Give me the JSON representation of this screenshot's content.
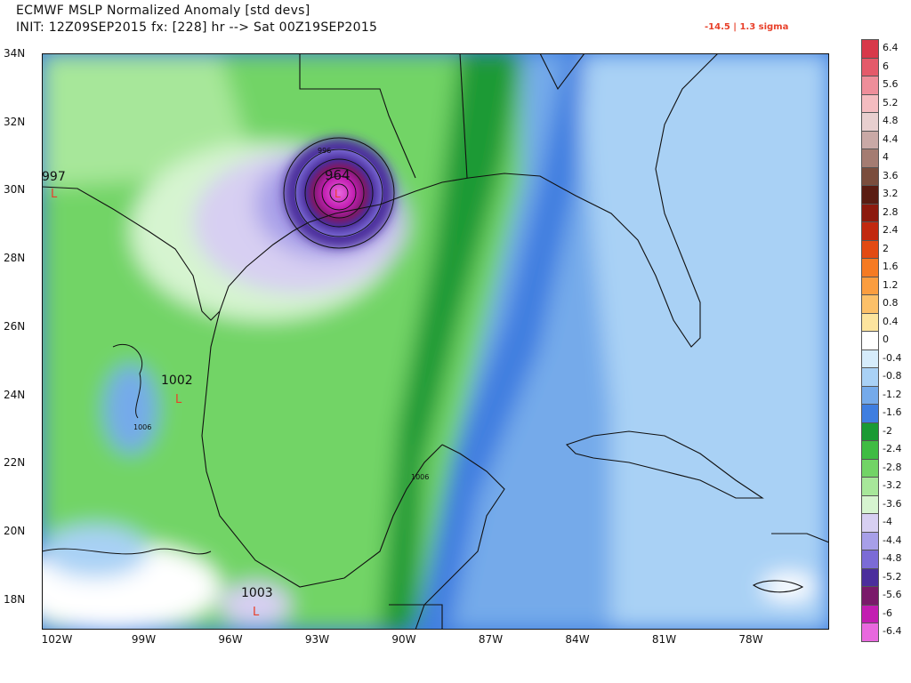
{
  "header": {
    "title_line1": "ECMWF MSLP Normalized Anomaly [std devs]",
    "title_line2": "INIT: 12Z09SEP2015 fx: [228] hr --> Sat 00Z19SEP2015",
    "stat": "-14.5 | 1.3 sigma"
  },
  "axes": {
    "lat_labels": [
      "34N",
      "32N",
      "30N",
      "28N",
      "26N",
      "24N",
      "22N",
      "20N",
      "18N"
    ],
    "lon_labels": [
      "102W",
      "99W",
      "96W",
      "93W",
      "90W",
      "87W",
      "84W",
      "81W",
      "78W"
    ]
  },
  "features": {
    "low_main_value": "964",
    "low_main_contour": "996",
    "low_west_value": "997",
    "low_mex_value": "1002",
    "low_mex_contour": "1006",
    "low_yuc_contour": "1006",
    "low_south_value": "1003",
    "low_marker": "L"
  },
  "colorbar": {
    "labels": [
      "6.4",
      "6",
      "5.6",
      "5.2",
      "4.8",
      "4.4",
      "4",
      "3.6",
      "3.2",
      "2.8",
      "2.4",
      "2",
      "1.6",
      "1.2",
      "0.8",
      "0.4",
      "0",
      "-0.4",
      "-0.8",
      "-1.2",
      "-1.6",
      "-2",
      "-2.4",
      "-2.8",
      "-3.2",
      "-3.6",
      "-4",
      "-4.4",
      "-4.8",
      "-5.2",
      "-5.6",
      "-6",
      "-6.4"
    ],
    "colors": [
      "#d8394a",
      "#e45a6a",
      "#ee8e9a",
      "#f4bcc0",
      "#e8cfcf",
      "#c9a9a6",
      "#a47c72",
      "#7a4d3d",
      "#5a1c12",
      "#8c1a0e",
      "#c1280f",
      "#e24a13",
      "#f57a22",
      "#fb9d3f",
      "#fcc069",
      "#fde49e",
      "#ffffff",
      "#d6ecfb",
      "#a9d1f5",
      "#75aaea",
      "#3f7ee0",
      "#1a9a34",
      "#3fbc43",
      "#72d466",
      "#a7e79a",
      "#d6f4d0",
      "#d7cff2",
      "#a79fe8",
      "#7b6bd6",
      "#4b2e9c",
      "#7a1a6a",
      "#c21db1",
      "#e868de"
    ]
  }
}
